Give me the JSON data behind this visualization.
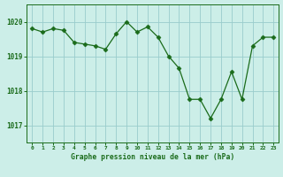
{
  "x": [
    0,
    1,
    2,
    3,
    4,
    5,
    6,
    7,
    8,
    9,
    10,
    11,
    12,
    13,
    14,
    15,
    16,
    17,
    18,
    19,
    20,
    21,
    22,
    23
  ],
  "y": [
    1019.8,
    1019.7,
    1019.8,
    1019.75,
    1019.4,
    1019.35,
    1019.3,
    1019.2,
    1019.65,
    1020.0,
    1019.7,
    1019.85,
    1019.55,
    1019.0,
    1018.65,
    1017.75,
    1017.75,
    1017.2,
    1017.75,
    1018.55,
    1017.75,
    1019.3,
    1019.55,
    1019.55
  ],
  "line_color": "#1a6b1a",
  "marker": "D",
  "marker_size": 2.5,
  "bg_color": "#cceee8",
  "grid_color": "#99cccc",
  "xlabel": "Graphe pression niveau de la mer (hPa)",
  "xlabel_color": "#1a6b1a",
  "tick_color": "#1a6b1a",
  "axis_color": "#1a6b1a",
  "ylim": [
    1016.5,
    1020.5
  ],
  "yticks": [
    1017,
    1018,
    1019,
    1020
  ],
  "xlim": [
    -0.5,
    23.5
  ],
  "xticks": [
    0,
    1,
    2,
    3,
    4,
    5,
    6,
    7,
    8,
    9,
    10,
    11,
    12,
    13,
    14,
    15,
    16,
    17,
    18,
    19,
    20,
    21,
    22,
    23
  ]
}
